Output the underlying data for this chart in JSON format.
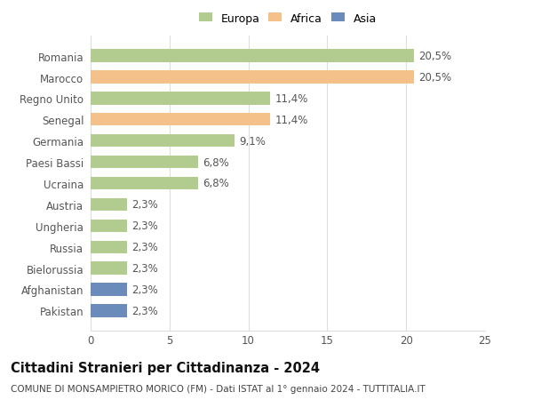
{
  "categories": [
    "Romania",
    "Marocco",
    "Regno Unito",
    "Senegal",
    "Germania",
    "Paesi Bassi",
    "Ucraina",
    "Austria",
    "Ungheria",
    "Russia",
    "Bielorussia",
    "Afghanistan",
    "Pakistan"
  ],
  "values": [
    20.5,
    20.5,
    11.4,
    11.4,
    9.1,
    6.8,
    6.8,
    2.3,
    2.3,
    2.3,
    2.3,
    2.3,
    2.3
  ],
  "labels": [
    "20,5%",
    "20,5%",
    "11,4%",
    "11,4%",
    "9,1%",
    "6,8%",
    "6,8%",
    "2,3%",
    "2,3%",
    "2,3%",
    "2,3%",
    "2,3%",
    "2,3%"
  ],
  "continents": [
    "Europa",
    "Africa",
    "Europa",
    "Africa",
    "Europa",
    "Europa",
    "Europa",
    "Europa",
    "Europa",
    "Europa",
    "Europa",
    "Asia",
    "Asia"
  ],
  "colors": {
    "Europa": "#b2cc8f",
    "Africa": "#f5c18a",
    "Asia": "#6b8cba"
  },
  "xlim": [
    0,
    25
  ],
  "xticks": [
    0,
    5,
    10,
    15,
    20,
    25
  ],
  "title": "Cittadini Stranieri per Cittadinanza - 2024",
  "subtitle": "COMUNE DI MONSAMPIETRO MORICO (FM) - Dati ISTAT al 1° gennaio 2024 - TUTTITALIA.IT",
  "background_color": "#ffffff",
  "grid_color": "#dddddd",
  "bar_height": 0.6,
  "title_fontsize": 10.5,
  "subtitle_fontsize": 7.5,
  "tick_fontsize": 8.5,
  "label_fontsize": 8.5
}
